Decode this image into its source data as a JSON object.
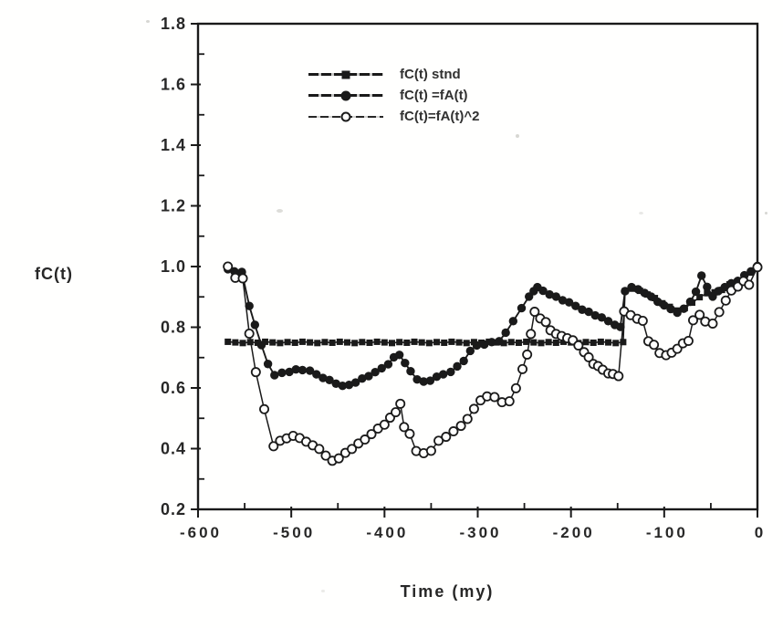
{
  "figure": {
    "y_axis_label": "fC(t)",
    "x_axis_title": "Time  (my)"
  },
  "colors": {
    "ink": "#1d1d1d",
    "paper": "#fcfcfa",
    "text": "#2a2a2a"
  },
  "chart_data": {
    "type": "line",
    "title": "",
    "xlabel": "Time (my)",
    "ylabel": "fC(t)",
    "xlim": [
      -600,
      0
    ],
    "ylim": [
      0.2,
      1.8
    ],
    "grid": false,
    "legend_position": "inside-top-left",
    "x_ticks_major": [
      -600,
      -500,
      -400,
      -300,
      -200,
      -100,
      0
    ],
    "x_ticks_minor": [
      -550,
      -450,
      -350,
      -250,
      -150,
      -50
    ],
    "y_ticks_major": [
      0.2,
      0.4,
      0.6,
      0.8,
      1.0,
      1.2,
      1.4,
      1.6,
      1.8
    ],
    "y_ticks_minor": [
      0.3,
      0.5,
      0.7,
      0.9,
      1.1,
      1.3,
      1.5,
      1.7
    ],
    "series": [
      {
        "name": "fC(t) stnd",
        "marker": "filled-square",
        "points": [
          [
            -568,
            0.75
          ],
          [
            -560,
            0.75
          ],
          [
            -552,
            0.75
          ],
          [
            -544,
            0.75
          ],
          [
            -536,
            0.75
          ],
          [
            -528,
            0.75
          ],
          [
            -520,
            0.75
          ],
          [
            -512,
            0.75
          ],
          [
            -504,
            0.75
          ],
          [
            -496,
            0.75
          ],
          [
            -488,
            0.75
          ],
          [
            -480,
            0.75
          ],
          [
            -472,
            0.75
          ],
          [
            -464,
            0.75
          ],
          [
            -456,
            0.75
          ],
          [
            -448,
            0.75
          ],
          [
            -440,
            0.75
          ],
          [
            -432,
            0.75
          ],
          [
            -424,
            0.75
          ],
          [
            -416,
            0.75
          ],
          [
            -408,
            0.75
          ],
          [
            -400,
            0.75
          ],
          [
            -392,
            0.75
          ],
          [
            -384,
            0.75
          ],
          [
            -376,
            0.75
          ],
          [
            -368,
            0.75
          ],
          [
            -360,
            0.75
          ],
          [
            -352,
            0.75
          ],
          [
            -344,
            0.75
          ],
          [
            -336,
            0.75
          ],
          [
            -328,
            0.75
          ],
          [
            -320,
            0.75
          ],
          [
            -312,
            0.75
          ],
          [
            -304,
            0.75
          ],
          [
            -296,
            0.75
          ],
          [
            -288,
            0.75
          ],
          [
            -280,
            0.75
          ],
          [
            -272,
            0.75
          ],
          [
            -264,
            0.75
          ],
          [
            -256,
            0.75
          ],
          [
            -248,
            0.75
          ],
          [
            -240,
            0.75
          ],
          [
            -232,
            0.75
          ],
          [
            -224,
            0.75
          ],
          [
            -216,
            0.75
          ],
          [
            -208,
            0.75
          ],
          [
            -200,
            0.75
          ],
          [
            -192,
            0.75
          ],
          [
            -184,
            0.75
          ],
          [
            -176,
            0.75
          ],
          [
            -168,
            0.75
          ],
          [
            -160,
            0.75
          ],
          [
            -152,
            0.75
          ],
          [
            -144,
            0.75
          ],
          [
            -142,
            0.92
          ],
          [
            -134,
            0.925
          ],
          [
            -126,
            0.92
          ],
          [
            -118,
            0.91
          ],
          [
            -110,
            0.895
          ],
          [
            -102,
            0.88
          ],
          [
            -94,
            0.865
          ],
          [
            -86,
            0.855
          ],
          [
            -78,
            0.865
          ],
          [
            -70,
            0.88
          ],
          [
            -62,
            0.9
          ],
          [
            -54,
            0.91
          ],
          [
            -46,
            0.915
          ],
          [
            -38,
            0.925
          ],
          [
            -30,
            0.94
          ],
          [
            -22,
            0.95
          ],
          [
            -14,
            0.965
          ],
          [
            -7,
            0.98
          ],
          [
            0,
            1.0
          ]
        ]
      },
      {
        "name": "fC(t) =fA(t)",
        "marker": "filled-circle",
        "points": [
          [
            -568,
            0.99
          ],
          [
            -561,
            0.985
          ],
          [
            -553,
            0.98
          ],
          [
            -545,
            0.87
          ],
          [
            -539,
            0.81
          ],
          [
            -532,
            0.74
          ],
          [
            -525,
            0.68
          ],
          [
            -518,
            0.64
          ],
          [
            -510,
            0.65
          ],
          [
            -502,
            0.655
          ],
          [
            -495,
            0.66
          ],
          [
            -488,
            0.66
          ],
          [
            -480,
            0.655
          ],
          [
            -473,
            0.645
          ],
          [
            -466,
            0.635
          ],
          [
            -459,
            0.625
          ],
          [
            -452,
            0.615
          ],
          [
            -445,
            0.605
          ],
          [
            -438,
            0.61
          ],
          [
            -431,
            0.62
          ],
          [
            -424,
            0.63
          ],
          [
            -417,
            0.64
          ],
          [
            -410,
            0.65
          ],
          [
            -403,
            0.665
          ],
          [
            -396,
            0.68
          ],
          [
            -390,
            0.7
          ],
          [
            -384,
            0.71
          ],
          [
            -378,
            0.68
          ],
          [
            -372,
            0.655
          ],
          [
            -365,
            0.63
          ],
          [
            -358,
            0.62
          ],
          [
            -351,
            0.625
          ],
          [
            -344,
            0.635
          ],
          [
            -337,
            0.645
          ],
          [
            -329,
            0.655
          ],
          [
            -322,
            0.67
          ],
          [
            -315,
            0.69
          ],
          [
            -308,
            0.72
          ],
          [
            -301,
            0.74
          ],
          [
            -293,
            0.745
          ],
          [
            -285,
            0.75
          ],
          [
            -277,
            0.755
          ],
          [
            -270,
            0.78
          ],
          [
            -262,
            0.82
          ],
          [
            -253,
            0.865
          ],
          [
            -245,
            0.9
          ],
          [
            -240,
            0.92
          ],
          [
            -236,
            0.93
          ],
          [
            -230,
            0.92
          ],
          [
            -223,
            0.91
          ],
          [
            -216,
            0.9
          ],
          [
            -209,
            0.89
          ],
          [
            -202,
            0.88
          ],
          [
            -195,
            0.87
          ],
          [
            -188,
            0.86
          ],
          [
            -181,
            0.85
          ],
          [
            -174,
            0.84
          ],
          [
            -167,
            0.83
          ],
          [
            -160,
            0.82
          ],
          [
            -153,
            0.81
          ],
          [
            -147,
            0.8
          ],
          [
            -142,
            0.92
          ],
          [
            -135,
            0.93
          ],
          [
            -128,
            0.925
          ],
          [
            -121,
            0.915
          ],
          [
            -114,
            0.9
          ],
          [
            -107,
            0.885
          ],
          [
            -100,
            0.87
          ],
          [
            -93,
            0.86
          ],
          [
            -86,
            0.85
          ],
          [
            -79,
            0.86
          ],
          [
            -72,
            0.885
          ],
          [
            -66,
            0.915
          ],
          [
            -60,
            0.97
          ],
          [
            -54,
            0.935
          ],
          [
            -48,
            0.9
          ],
          [
            -42,
            0.92
          ],
          [
            -35,
            0.93
          ],
          [
            -28,
            0.945
          ],
          [
            -21,
            0.955
          ],
          [
            -14,
            0.97
          ],
          [
            -7,
            0.985
          ],
          [
            0,
            1.0
          ]
        ]
      },
      {
        "name": "fC(t)=fA(t)^2",
        "marker": "open-circle",
        "points": [
          [
            -568,
            1.0
          ],
          [
            -560,
            0.965
          ],
          [
            -552,
            0.96
          ],
          [
            -545,
            0.78
          ],
          [
            -538,
            0.65
          ],
          [
            -529,
            0.53
          ],
          [
            -519,
            0.41
          ],
          [
            -512,
            0.425
          ],
          [
            -505,
            0.435
          ],
          [
            -498,
            0.44
          ],
          [
            -491,
            0.435
          ],
          [
            -484,
            0.425
          ],
          [
            -477,
            0.41
          ],
          [
            -470,
            0.4
          ],
          [
            -463,
            0.375
          ],
          [
            -456,
            0.36
          ],
          [
            -449,
            0.37
          ],
          [
            -442,
            0.385
          ],
          [
            -435,
            0.4
          ],
          [
            -428,
            0.415
          ],
          [
            -421,
            0.43
          ],
          [
            -414,
            0.45
          ],
          [
            -407,
            0.465
          ],
          [
            -400,
            0.48
          ],
          [
            -394,
            0.5
          ],
          [
            -388,
            0.52
          ],
          [
            -383,
            0.55
          ],
          [
            -379,
            0.47
          ],
          [
            -373,
            0.45
          ],
          [
            -366,
            0.39
          ],
          [
            -358,
            0.385
          ],
          [
            -350,
            0.395
          ],
          [
            -342,
            0.425
          ],
          [
            -334,
            0.44
          ],
          [
            -326,
            0.455
          ],
          [
            -318,
            0.475
          ],
          [
            -311,
            0.5
          ],
          [
            -304,
            0.53
          ],
          [
            -297,
            0.56
          ],
          [
            -290,
            0.57
          ],
          [
            -282,
            0.57
          ],
          [
            -274,
            0.555
          ],
          [
            -266,
            0.555
          ],
          [
            -259,
            0.6
          ],
          [
            -252,
            0.66
          ],
          [
            -247,
            0.71
          ],
          [
            -243,
            0.78
          ],
          [
            -239,
            0.85
          ],
          [
            -233,
            0.83
          ],
          [
            -227,
            0.815
          ],
          [
            -222,
            0.79
          ],
          [
            -216,
            0.78
          ],
          [
            -210,
            0.77
          ],
          [
            -204,
            0.765
          ],
          [
            -198,
            0.755
          ],
          [
            -192,
            0.74
          ],
          [
            -186,
            0.72
          ],
          [
            -181,
            0.7
          ],
          [
            -176,
            0.68
          ],
          [
            -171,
            0.67
          ],
          [
            -166,
            0.66
          ],
          [
            -160,
            0.65
          ],
          [
            -155,
            0.645
          ],
          [
            -149,
            0.64
          ],
          [
            -143,
            0.85
          ],
          [
            -136,
            0.84
          ],
          [
            -129,
            0.83
          ],
          [
            -123,
            0.82
          ],
          [
            -117,
            0.755
          ],
          [
            -111,
            0.74
          ],
          [
            -105,
            0.715
          ],
          [
            -98,
            0.71
          ],
          [
            -92,
            0.715
          ],
          [
            -86,
            0.73
          ],
          [
            -80,
            0.745
          ],
          [
            -74,
            0.755
          ],
          [
            -69,
            0.825
          ],
          [
            -62,
            0.84
          ],
          [
            -56,
            0.82
          ],
          [
            -48,
            0.81
          ],
          [
            -41,
            0.85
          ],
          [
            -34,
            0.89
          ],
          [
            -28,
            0.92
          ],
          [
            -21,
            0.935
          ],
          [
            -15,
            0.95
          ],
          [
            -9,
            0.94
          ],
          [
            0,
            1.0
          ]
        ]
      }
    ]
  }
}
